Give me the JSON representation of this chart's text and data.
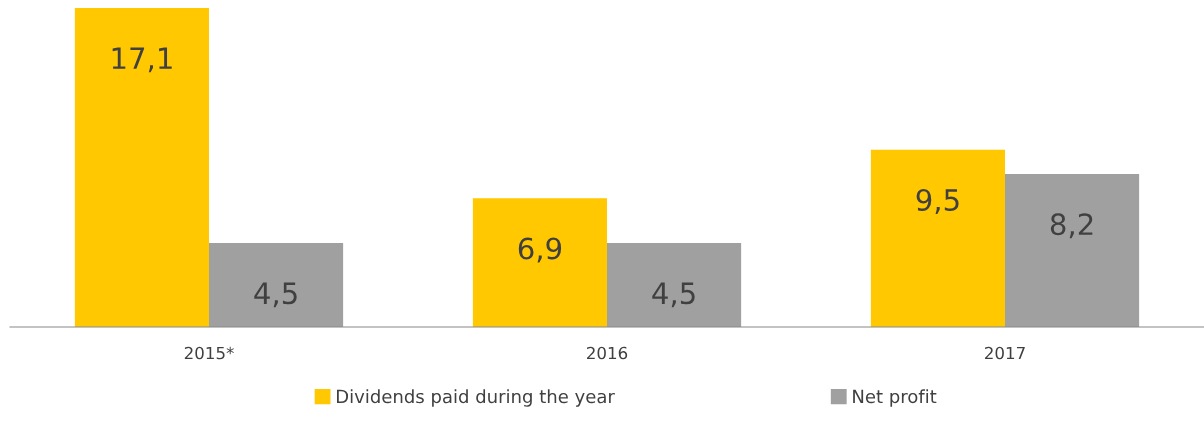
{
  "chart_data": {
    "type": "bar",
    "categories": [
      "2015*",
      "2016",
      "2017"
    ],
    "series": [
      {
        "name": "Dividends paid during the year",
        "color": "#ffc800",
        "values": [
          17.1,
          6.9,
          9.5
        ],
        "value_labels": [
          "17,1",
          "6,9",
          "9,5"
        ]
      },
      {
        "name": "Net profit",
        "color": "#a0a0a0",
        "values": [
          4.5,
          4.5,
          8.2
        ],
        "value_labels": [
          "4,5",
          "4,5",
          "8,2"
        ]
      }
    ],
    "legend": "bottom"
  }
}
